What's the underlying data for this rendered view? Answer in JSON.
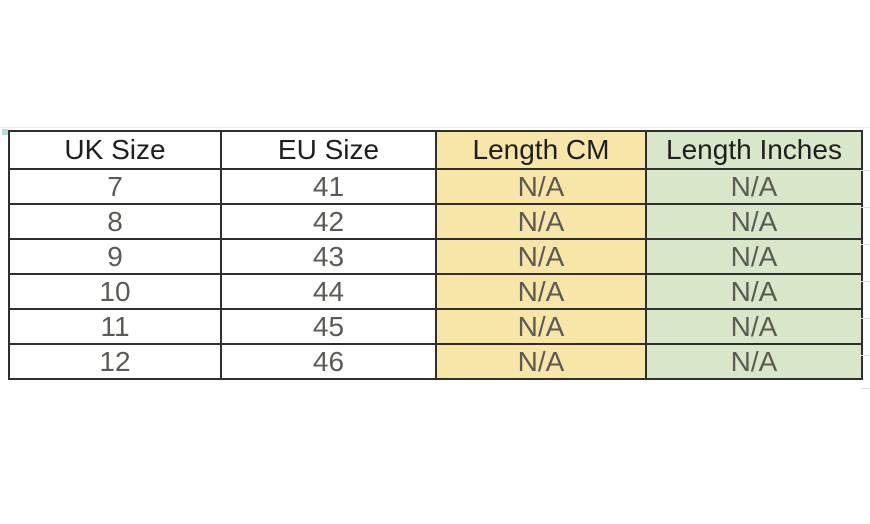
{
  "chart_data": {
    "type": "table",
    "columns": [
      {
        "key": "uk",
        "label": "UK Size",
        "bg": "#ffffff"
      },
      {
        "key": "eu",
        "label": "EU Size",
        "bg": "#ffffff"
      },
      {
        "key": "cm",
        "label": "Length CM",
        "bg": "#f8e5a8"
      },
      {
        "key": "inch",
        "label": "Length Inches",
        "bg": "#d8e6ca"
      }
    ],
    "rows": [
      [
        "7",
        "41",
        "N/A",
        "N/A"
      ],
      [
        "8",
        "42",
        "N/A",
        "N/A"
      ],
      [
        "9",
        "43",
        "N/A",
        "N/A"
      ],
      [
        "10",
        "44",
        "N/A",
        "N/A"
      ],
      [
        "11",
        "45",
        "N/A",
        "N/A"
      ],
      [
        "12",
        "46",
        "N/A",
        "N/A"
      ]
    ]
  },
  "colors": {
    "length_cm_fill": "#f8e5a8",
    "length_inches_fill": "#d8e6ca",
    "border": "#2f2f2f",
    "header_text": "#1e1e1e",
    "data_text": "#5b5b55"
  }
}
